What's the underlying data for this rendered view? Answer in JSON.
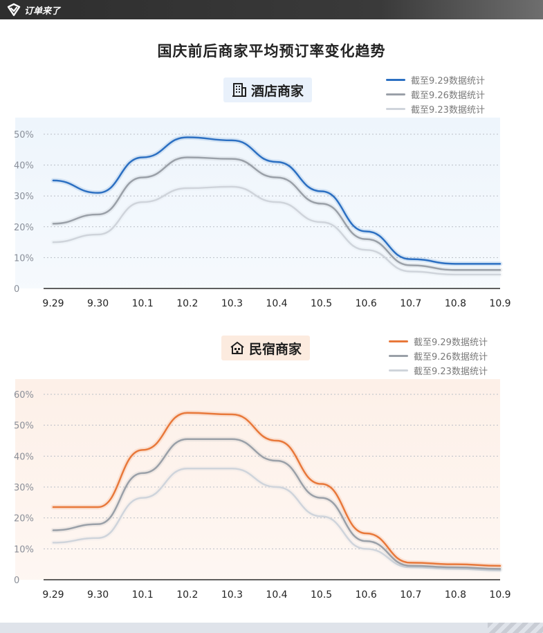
{
  "brand": {
    "name": "订单来了",
    "icon": "brand-logo-icon"
  },
  "title": "国庆前后商家平均预订率变化趋势",
  "chart_data": [
    {
      "type": "line",
      "title": "酒店商家",
      "icon": "building-icon",
      "x": [
        "9.29",
        "9.30",
        "10.1",
        "10.2",
        "10.3",
        "10.4",
        "10.5",
        "10.6",
        "10.7",
        "10.8",
        "10.9"
      ],
      "ylim": [
        0,
        50
      ],
      "yticks": [
        0,
        10,
        20,
        30,
        40,
        50
      ],
      "ytick_labels": [
        "0",
        "10%",
        "20%",
        "30%",
        "40%",
        "50%"
      ],
      "grid": true,
      "background": "#eef5fc",
      "legend_position": "top-right",
      "series": [
        {
          "name": "截至9.29数据统计",
          "color": "#2b6fc2",
          "values": [
            35,
            31,
            42.5,
            49,
            48,
            41,
            31.5,
            18.5,
            9.5,
            8,
            8
          ]
        },
        {
          "name": "截至9.26数据统计",
          "color": "#9aa0a8",
          "values": [
            21,
            24,
            36,
            42.5,
            42,
            36,
            27.5,
            16,
            7.5,
            6,
            6
          ]
        },
        {
          "name": "截至9.23数据统计",
          "color": "#cfd4db",
          "values": [
            15,
            17.5,
            28,
            32.5,
            33,
            28,
            21.5,
            12.5,
            5.5,
            4.5,
            4.5
          ]
        }
      ]
    },
    {
      "type": "line",
      "title": "民宿商家",
      "icon": "house-icon",
      "x": [
        "9.29",
        "9.30",
        "10.1",
        "10.2",
        "10.3",
        "10.4",
        "10.5",
        "10.6",
        "10.7",
        "10.8",
        "10.9"
      ],
      "ylim": [
        0,
        60
      ],
      "yticks": [
        0,
        10,
        20,
        30,
        40,
        50,
        60
      ],
      "ytick_labels": [
        "0",
        "10%",
        "20%",
        "30%",
        "40%",
        "50%",
        "60%"
      ],
      "grid": true,
      "background": "#fdf0e8",
      "legend_position": "top-right",
      "series": [
        {
          "name": "截至9.29数据统计",
          "color": "#e8783a",
          "values": [
            23.5,
            23.5,
            42,
            54,
            53.5,
            45,
            31,
            15,
            5.5,
            5,
            4.5
          ]
        },
        {
          "name": "截至9.26数据统计",
          "color": "#9aa0a8",
          "values": [
            16,
            18,
            34.5,
            45.5,
            45.5,
            38.5,
            26.5,
            12.5,
            4.5,
            4,
            3.5
          ]
        },
        {
          "name": "截至9.23数据统计",
          "color": "#cfd4db",
          "values": [
            12,
            13.5,
            26.5,
            36,
            36,
            30,
            20.5,
            10,
            4,
            3.5,
            3
          ]
        }
      ]
    }
  ]
}
